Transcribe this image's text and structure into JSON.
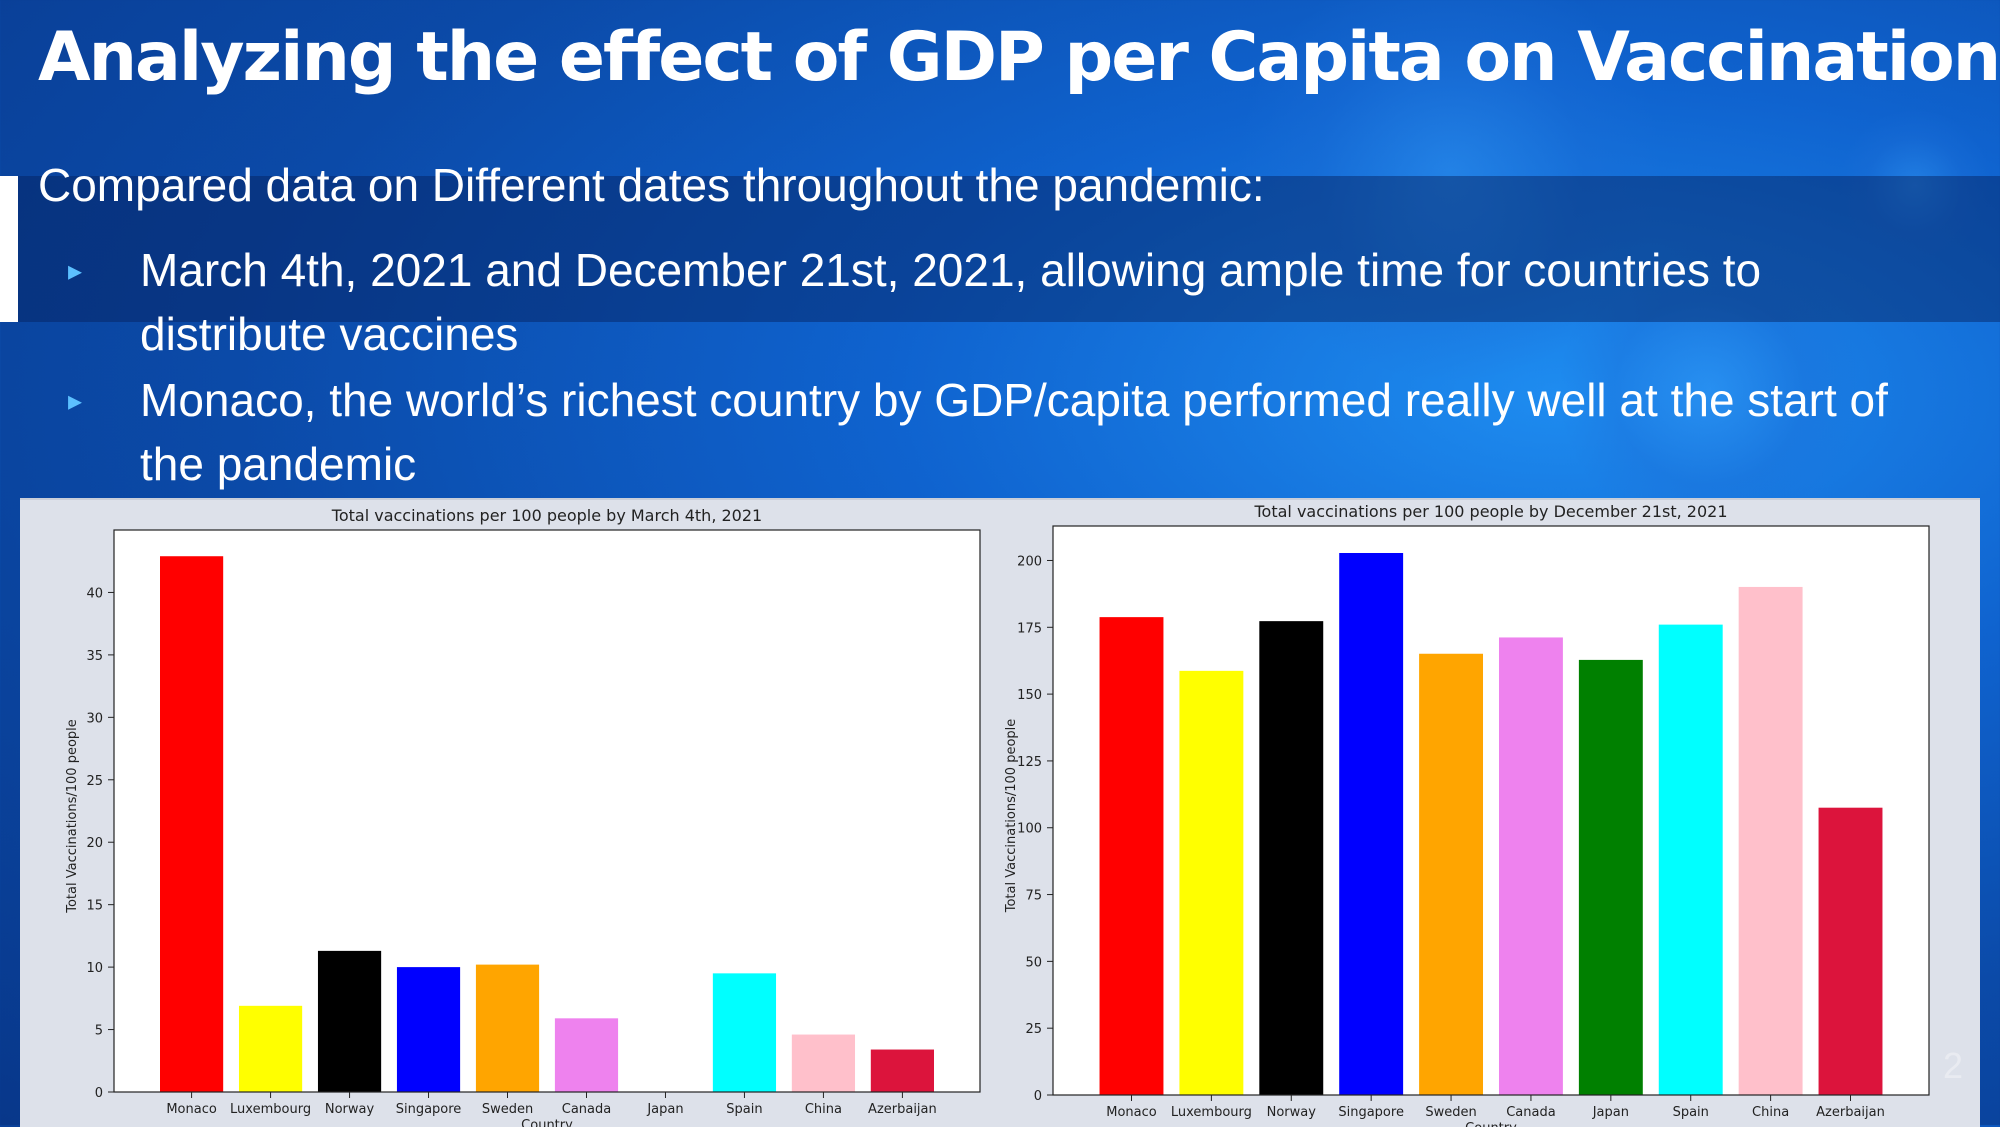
{
  "slide": {
    "title": "Analyzing the effect of GDP per Capita on Vaccinations",
    "intro": "Compared data on Different dates throughout the pandemic:",
    "bullets": [
      "March 4th, 2021 and December 21st, 2021, allowing ample time for countries to distribute vaccines",
      "Monaco, the world’s richest country by GDP/capita performed really well at the start of the pandemic"
    ],
    "bullet_marker": "▸",
    "page_number": "2"
  },
  "colors": {
    "bars": [
      "#ff0000",
      "#ffff00",
      "#000000",
      "#0000ff",
      "#ffa500",
      "#ee82ee",
      "#008000",
      "#00ffff",
      "#ffc0cb",
      "#dc143c"
    ]
  },
  "chart_data": [
    {
      "type": "bar",
      "title": "Total vaccinations per 100 people by March 4th, 2021",
      "xlabel": "Country",
      "ylabel": "Total Vaccinations/100 people",
      "categories": [
        "Monaco",
        "Luxembourg",
        "Norway",
        "Singapore",
        "Sweden",
        "Canada",
        "Japan",
        "Spain",
        "China",
        "Azerbaijan"
      ],
      "values": [
        42.9,
        6.9,
        11.3,
        10.0,
        10.2,
        5.9,
        0,
        9.5,
        4.6,
        3.4
      ],
      "ylim": [
        0,
        45
      ],
      "yticks": [
        0,
        5,
        10,
        15,
        20,
        25,
        30,
        35,
        40
      ],
      "grid": false,
      "legend": "none"
    },
    {
      "type": "bar",
      "title": "Total vaccinations per 100 people by December 21st, 2021",
      "xlabel": "Country",
      "ylabel": "Total Vaccinations/100 people",
      "categories": [
        "Monaco",
        "Luxembourg",
        "Norway",
        "Singapore",
        "Sweden",
        "Canada",
        "Japan",
        "Spain",
        "China",
        "Azerbaijan"
      ],
      "values": [
        178.8,
        158.7,
        177.3,
        202.8,
        165.1,
        171.2,
        162.8,
        176.0,
        190.1,
        107.5
      ],
      "ylim": [
        0,
        212.9
      ],
      "yticks": [
        0,
        25,
        50,
        75,
        100,
        125,
        150,
        175,
        200
      ],
      "grid": false,
      "legend": "none"
    }
  ]
}
